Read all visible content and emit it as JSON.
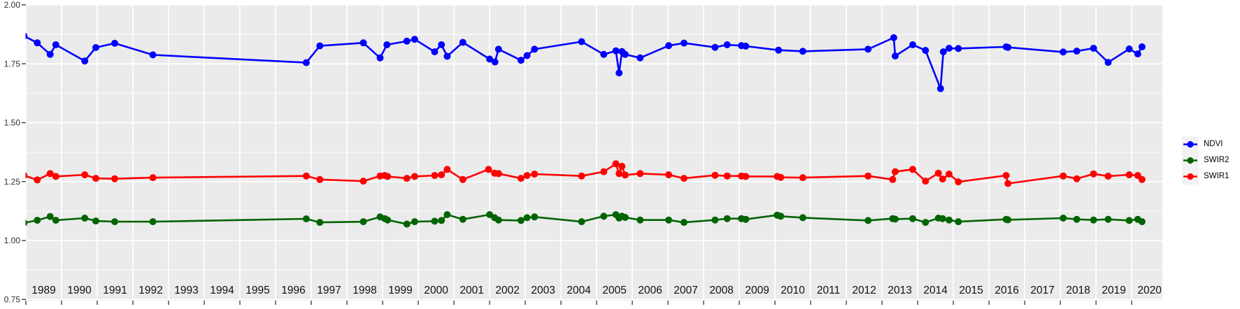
{
  "chart_data": {
    "type": "line",
    "title": "",
    "xlabel": "",
    "ylabel": "",
    "x_axis": {
      "range": [
        1989.0,
        2020.86
      ],
      "tick_years": [
        1989,
        1990,
        1991,
        1992,
        1993,
        1994,
        1995,
        1996,
        1997,
        1998,
        1999,
        2000,
        2001,
        2002,
        2003,
        2004,
        2005,
        2006,
        2007,
        2008,
        2009,
        2010,
        2011,
        2012,
        2013,
        2014,
        2015,
        2016,
        2017,
        2018,
        2019,
        2020
      ],
      "gridlines_at_year_boundaries": true
    },
    "y_axis": {
      "range": [
        0.745,
        2.0
      ],
      "ticks": [
        "2.00",
        "1.75",
        "1.50",
        "1.25",
        "1.00",
        "0.75"
      ],
      "tick_values": [
        2.0,
        1.75,
        1.5,
        1.25,
        1.0,
        0.75
      ],
      "minor_tick_values": [
        1.875,
        1.625,
        1.375,
        1.125,
        0.875
      ]
    },
    "legend": {
      "position": "right",
      "entries": [
        {
          "label": "NDVI",
          "color": "#0000ff"
        },
        {
          "label": "SWIR2",
          "color": "#006400"
        },
        {
          "label": "SWIR1",
          "color": "#ff0000"
        }
      ]
    },
    "style": {
      "panel_bg": "#ebebeb",
      "grid_color": "#ffffff",
      "axis_text_color": "#303030",
      "year_label_color": "#111111",
      "tick_color": "#333333",
      "legend_key_bg": "#f2f2f2"
    },
    "series": [
      {
        "name": "NDVI",
        "color": "#0000ff",
        "points": [
          [
            1988.95,
            1.868
          ],
          [
            1989.32,
            1.839
          ],
          [
            1989.68,
            1.79
          ],
          [
            1989.84,
            1.831
          ],
          [
            1990.65,
            1.762
          ],
          [
            1990.96,
            1.819
          ],
          [
            1991.49,
            1.837
          ],
          [
            1992.56,
            1.788
          ],
          [
            1996.86,
            1.755
          ],
          [
            1997.24,
            1.826
          ],
          [
            1998.46,
            1.839
          ],
          [
            1998.93,
            1.775
          ],
          [
            1999.12,
            1.831
          ],
          [
            1999.68,
            1.846
          ],
          [
            1999.9,
            1.854
          ],
          [
            2000.46,
            1.801
          ],
          [
            2000.65,
            1.831
          ],
          [
            2000.81,
            1.782
          ],
          [
            2001.25,
            1.841
          ],
          [
            2002.0,
            1.77
          ],
          [
            2002.15,
            1.758
          ],
          [
            2002.25,
            1.812
          ],
          [
            2002.88,
            1.765
          ],
          [
            2003.05,
            1.785
          ],
          [
            2003.26,
            1.812
          ],
          [
            2004.58,
            1.844
          ],
          [
            2005.2,
            1.79
          ],
          [
            2005.54,
            1.805
          ],
          [
            2005.63,
            1.711
          ],
          [
            2005.71,
            1.802
          ],
          [
            2005.8,
            1.79
          ],
          [
            2006.22,
            1.775
          ],
          [
            2007.02,
            1.827
          ],
          [
            2007.45,
            1.838
          ],
          [
            2008.32,
            1.82
          ],
          [
            2008.66,
            1.831
          ],
          [
            2009.06,
            1.827
          ],
          [
            2009.18,
            1.825
          ],
          [
            2010.1,
            1.808
          ],
          [
            2010.78,
            1.803
          ],
          [
            2012.61,
            1.812
          ],
          [
            2013.33,
            1.861
          ],
          [
            2013.37,
            1.783
          ],
          [
            2013.86,
            1.831
          ],
          [
            2014.22,
            1.807
          ],
          [
            2014.64,
            1.645
          ],
          [
            2014.72,
            1.801
          ],
          [
            2014.88,
            1.816
          ],
          [
            2015.14,
            1.815
          ],
          [
            2016.48,
            1.822
          ],
          [
            2016.53,
            1.82
          ],
          [
            2018.08,
            1.8
          ],
          [
            2018.46,
            1.804
          ],
          [
            2018.93,
            1.816
          ],
          [
            2019.34,
            1.756
          ],
          [
            2019.93,
            1.813
          ],
          [
            2020.17,
            1.792
          ],
          [
            2020.29,
            1.822
          ]
        ]
      },
      {
        "name": "SWIR2",
        "color": "#006400",
        "points": [
          [
            1988.95,
            1.075
          ],
          [
            1989.32,
            1.086
          ],
          [
            1989.68,
            1.102
          ],
          [
            1989.84,
            1.086
          ],
          [
            1990.65,
            1.095
          ],
          [
            1990.96,
            1.083
          ],
          [
            1991.49,
            1.08
          ],
          [
            1992.56,
            1.08
          ],
          [
            1996.86,
            1.092
          ],
          [
            1997.24,
            1.077
          ],
          [
            1998.46,
            1.08
          ],
          [
            1998.93,
            1.1
          ],
          [
            1999.06,
            1.093
          ],
          [
            1999.14,
            1.087
          ],
          [
            1999.68,
            1.07
          ],
          [
            1999.9,
            1.08
          ],
          [
            2000.46,
            1.082
          ],
          [
            2000.65,
            1.085
          ],
          [
            2000.81,
            1.11
          ],
          [
            2001.25,
            1.09
          ],
          [
            2002.0,
            1.11
          ],
          [
            2002.14,
            1.097
          ],
          [
            2002.25,
            1.087
          ],
          [
            2002.88,
            1.085
          ],
          [
            2003.05,
            1.097
          ],
          [
            2003.26,
            1.1
          ],
          [
            2004.58,
            1.08
          ],
          [
            2005.2,
            1.103
          ],
          [
            2005.54,
            1.11
          ],
          [
            2005.63,
            1.095
          ],
          [
            2005.71,
            1.103
          ],
          [
            2005.8,
            1.098
          ],
          [
            2006.22,
            1.087
          ],
          [
            2007.02,
            1.087
          ],
          [
            2007.45,
            1.077
          ],
          [
            2008.32,
            1.087
          ],
          [
            2008.66,
            1.093
          ],
          [
            2009.06,
            1.093
          ],
          [
            2009.18,
            1.09
          ],
          [
            2010.06,
            1.108
          ],
          [
            2010.16,
            1.103
          ],
          [
            2010.78,
            1.097
          ],
          [
            2012.61,
            1.085
          ],
          [
            2013.3,
            1.093
          ],
          [
            2013.37,
            1.091
          ],
          [
            2013.86,
            1.093
          ],
          [
            2014.22,
            1.077
          ],
          [
            2014.58,
            1.095
          ],
          [
            2014.7,
            1.093
          ],
          [
            2014.88,
            1.087
          ],
          [
            2015.14,
            1.08
          ],
          [
            2016.48,
            1.09
          ],
          [
            2016.53,
            1.088
          ],
          [
            2018.08,
            1.095
          ],
          [
            2018.46,
            1.09
          ],
          [
            2018.93,
            1.087
          ],
          [
            2019.34,
            1.09
          ],
          [
            2019.93,
            1.085
          ],
          [
            2020.17,
            1.09
          ],
          [
            2020.29,
            1.08
          ]
        ]
      },
      {
        "name": "SWIR1",
        "color": "#ff0000",
        "points": [
          [
            1988.95,
            1.276
          ],
          [
            1989.32,
            1.257
          ],
          [
            1989.68,
            1.284
          ],
          [
            1989.84,
            1.272
          ],
          [
            1990.65,
            1.279
          ],
          [
            1990.96,
            1.264
          ],
          [
            1991.49,
            1.262
          ],
          [
            1992.56,
            1.267
          ],
          [
            1996.86,
            1.274
          ],
          [
            1997.24,
            1.259
          ],
          [
            1998.46,
            1.252
          ],
          [
            1998.93,
            1.274
          ],
          [
            1999.06,
            1.276
          ],
          [
            1999.14,
            1.272
          ],
          [
            1999.68,
            1.264
          ],
          [
            1999.9,
            1.272
          ],
          [
            2000.46,
            1.276
          ],
          [
            2000.65,
            1.279
          ],
          [
            2000.81,
            1.302
          ],
          [
            2001.25,
            1.259
          ],
          [
            2001.97,
            1.302
          ],
          [
            2002.14,
            1.286
          ],
          [
            2002.25,
            1.284
          ],
          [
            2002.88,
            1.264
          ],
          [
            2003.05,
            1.276
          ],
          [
            2003.26,
            1.282
          ],
          [
            2004.58,
            1.274
          ],
          [
            2005.2,
            1.292
          ],
          [
            2005.54,
            1.326
          ],
          [
            2005.63,
            1.284
          ],
          [
            2005.71,
            1.315
          ],
          [
            2005.8,
            1.278
          ],
          [
            2006.22,
            1.284
          ],
          [
            2007.02,
            1.279
          ],
          [
            2007.45,
            1.264
          ],
          [
            2008.32,
            1.277
          ],
          [
            2008.66,
            1.274
          ],
          [
            2009.06,
            1.274
          ],
          [
            2009.18,
            1.272
          ],
          [
            2010.06,
            1.272
          ],
          [
            2010.16,
            1.268
          ],
          [
            2010.78,
            1.267
          ],
          [
            2012.61,
            1.274
          ],
          [
            2013.3,
            1.259
          ],
          [
            2013.37,
            1.292
          ],
          [
            2013.86,
            1.302
          ],
          [
            2014.22,
            1.252
          ],
          [
            2014.58,
            1.286
          ],
          [
            2014.7,
            1.261
          ],
          [
            2014.88,
            1.282
          ],
          [
            2015.14,
            1.249
          ],
          [
            2016.48,
            1.276
          ],
          [
            2016.53,
            1.242
          ],
          [
            2018.08,
            1.274
          ],
          [
            2018.46,
            1.262
          ],
          [
            2018.93,
            1.283
          ],
          [
            2019.34,
            1.273
          ],
          [
            2019.93,
            1.279
          ],
          [
            2020.17,
            1.276
          ],
          [
            2020.29,
            1.259
          ]
        ]
      }
    ]
  }
}
